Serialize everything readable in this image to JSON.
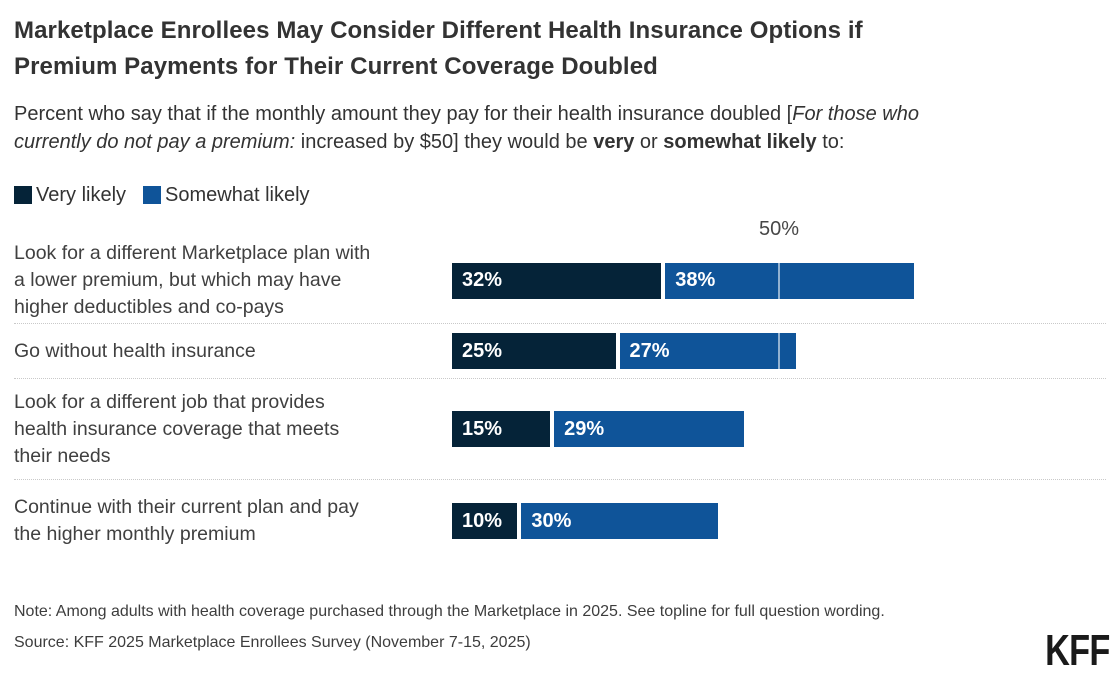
{
  "header": {
    "title": "Marketplace Enrollees May Consider Different Health Insurance Options if\nPremium Payments for Their Current Coverage Doubled",
    "subtitle_part1": "Percent who say that if the monthly amount they pay for their health insurance doubled [",
    "subtitle_italic": "For those who\ncurrently do not pay a premium:",
    "subtitle_part2": " increased by $50] they would be ",
    "subtitle_bold1": "very",
    "subtitle_part3": " or ",
    "subtitle_bold2": "somewhat likely",
    "subtitle_part4": " to:"
  },
  "legend": {
    "items": [
      {
        "label": "Very likely",
        "color": "#052338"
      },
      {
        "label": "Somewhat likely",
        "color": "#0F5499"
      }
    ]
  },
  "chart_data": {
    "type": "bar",
    "orientation": "horizontal",
    "stacked": true,
    "categories": [
      "Look for a different Marketplace plan with\na lower premium, but which may have\nhigher deductibles and co-pays",
      "Go without health insurance",
      "Look for a different job that provides\nhealth insurance coverage that meets\ntheir needs",
      "Continue with their current plan and pay\nthe higher monthly premium"
    ],
    "series": [
      {
        "name": "Very likely",
        "color": "#052338",
        "values": [
          32,
          25,
          15,
          10
        ]
      },
      {
        "name": "Somewhat likely",
        "color": "#0F5499",
        "values": [
          38,
          27,
          29,
          30
        ]
      }
    ],
    "bar_labels": [
      [
        "32%",
        "38%"
      ],
      [
        "25%",
        "27%"
      ],
      [
        "15%",
        "29%"
      ],
      [
        "10%",
        "30%"
      ]
    ],
    "xlim": [
      0,
      100
    ],
    "grid": "single-tick",
    "gridline": {
      "value": 50,
      "label": "50%"
    },
    "legend_position": "top-left"
  },
  "footer": {
    "note": "Note: Among adults with health coverage purchased through the Marketplace in 2025. See topline for full question wording.",
    "source": "Source: KFF 2025 Marketplace Enrollees Survey (November 7-15, 2025)",
    "logo": "KFF"
  }
}
